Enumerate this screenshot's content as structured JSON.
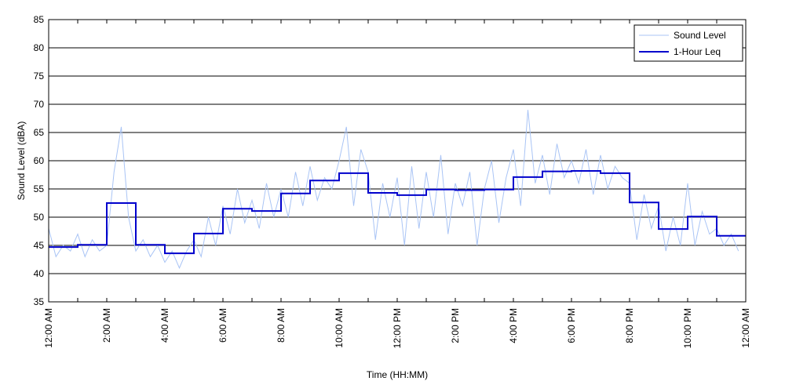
{
  "chart_data": {
    "type": "line",
    "ylabel": "Sound Level (dBA)",
    "xlabel": "Time (HH:MM)",
    "xlim": [
      0,
      24
    ],
    "xticks": [
      {
        "value": 0,
        "label": "12:00 AM"
      },
      {
        "value": 2,
        "label": "2:00 AM"
      },
      {
        "value": 4,
        "label": "4:00 AM"
      },
      {
        "value": 6,
        "label": "6:00 AM"
      },
      {
        "value": 8,
        "label": "8:00 AM"
      },
      {
        "value": 10,
        "label": "10:00 AM"
      },
      {
        "value": 12,
        "label": "12:00 PM"
      },
      {
        "value": 14,
        "label": "2:00 PM"
      },
      {
        "value": 16,
        "label": "4:00 PM"
      },
      {
        "value": 18,
        "label": "6:00 PM"
      },
      {
        "value": 20,
        "label": "8:00 PM"
      },
      {
        "value": 22,
        "label": "10:00 PM"
      },
      {
        "value": 24,
        "label": "12:00 AM"
      }
    ],
    "xminorticks": [
      1,
      3,
      5,
      7,
      9,
      11,
      13,
      15,
      17,
      19,
      21,
      23
    ],
    "ylim": [
      35,
      85
    ],
    "yticks": [
      35,
      40,
      45,
      50,
      55,
      60,
      65,
      70,
      75,
      80,
      85
    ],
    "grid": true,
    "legend": "upper right",
    "series": [
      {
        "name": "Sound Level",
        "color": "#a9c4f5",
        "drawstyle": "line",
        "x": [
          0,
          0.25,
          0.5,
          0.75,
          1,
          1.25,
          1.5,
          1.75,
          2,
          2.25,
          2.5,
          2.75,
          3,
          3.25,
          3.5,
          3.75,
          4,
          4.25,
          4.5,
          4.75,
          5,
          5.25,
          5.5,
          5.75,
          6,
          6.25,
          6.5,
          6.75,
          7,
          7.25,
          7.5,
          7.75,
          8,
          8.25,
          8.5,
          8.75,
          9,
          9.25,
          9.5,
          9.75,
          10,
          10.25,
          10.5,
          10.75,
          11,
          11.25,
          11.5,
          11.75,
          12,
          12.25,
          12.5,
          12.75,
          13,
          13.25,
          13.5,
          13.75,
          14,
          14.25,
          14.5,
          14.75,
          15,
          15.25,
          15.5,
          15.75,
          16,
          16.25,
          16.5,
          16.75,
          17,
          17.25,
          17.5,
          17.75,
          18,
          18.25,
          18.5,
          18.75,
          19,
          19.25,
          19.5,
          19.75,
          20,
          20.25,
          20.5,
          20.75,
          21,
          21.25,
          21.5,
          21.75,
          22,
          22.25,
          22.5,
          22.75,
          23,
          23.25,
          23.5,
          23.75
        ],
        "values": [
          48,
          43,
          45,
          44,
          47,
          43,
          46,
          44,
          45,
          58,
          66,
          50,
          44,
          46,
          43,
          45,
          42,
          44,
          41,
          44,
          46,
          43,
          50,
          45,
          52,
          47,
          55,
          49,
          53,
          48,
          56,
          50,
          55,
          50,
          58,
          52,
          59,
          53,
          57,
          55,
          60,
          66,
          52,
          62,
          58,
          46,
          56,
          50,
          57,
          45,
          59,
          48,
          58,
          50,
          61,
          47,
          56,
          52,
          58,
          45,
          55,
          60,
          49,
          57,
          62,
          52,
          69,
          56,
          61,
          54,
          63,
          57,
          60,
          56,
          62,
          54,
          61,
          55,
          59,
          57,
          56,
          46,
          54,
          48,
          52,
          44,
          50,
          45,
          56,
          45,
          51,
          47,
          48,
          45,
          47,
          44
        ]
      },
      {
        "name": "1-Hour Leq",
        "color": "#0000cc",
        "drawstyle": "steps-post",
        "x": [
          0,
          1,
          2,
          3,
          4,
          5,
          6,
          7,
          8,
          9,
          10,
          11,
          12,
          13,
          14,
          15,
          16,
          17,
          18,
          19,
          20,
          21,
          22,
          23
        ],
        "values": [
          44.7,
          45.1,
          52.5,
          45.1,
          43.6,
          47.1,
          51.5,
          51.1,
          54.2,
          56.5,
          57.8,
          54.3,
          53.9,
          54.9,
          54.8,
          54.9,
          57.1,
          58.1,
          58.2,
          57.8,
          52.6,
          47.9,
          50.1,
          46.7
        ]
      }
    ]
  }
}
